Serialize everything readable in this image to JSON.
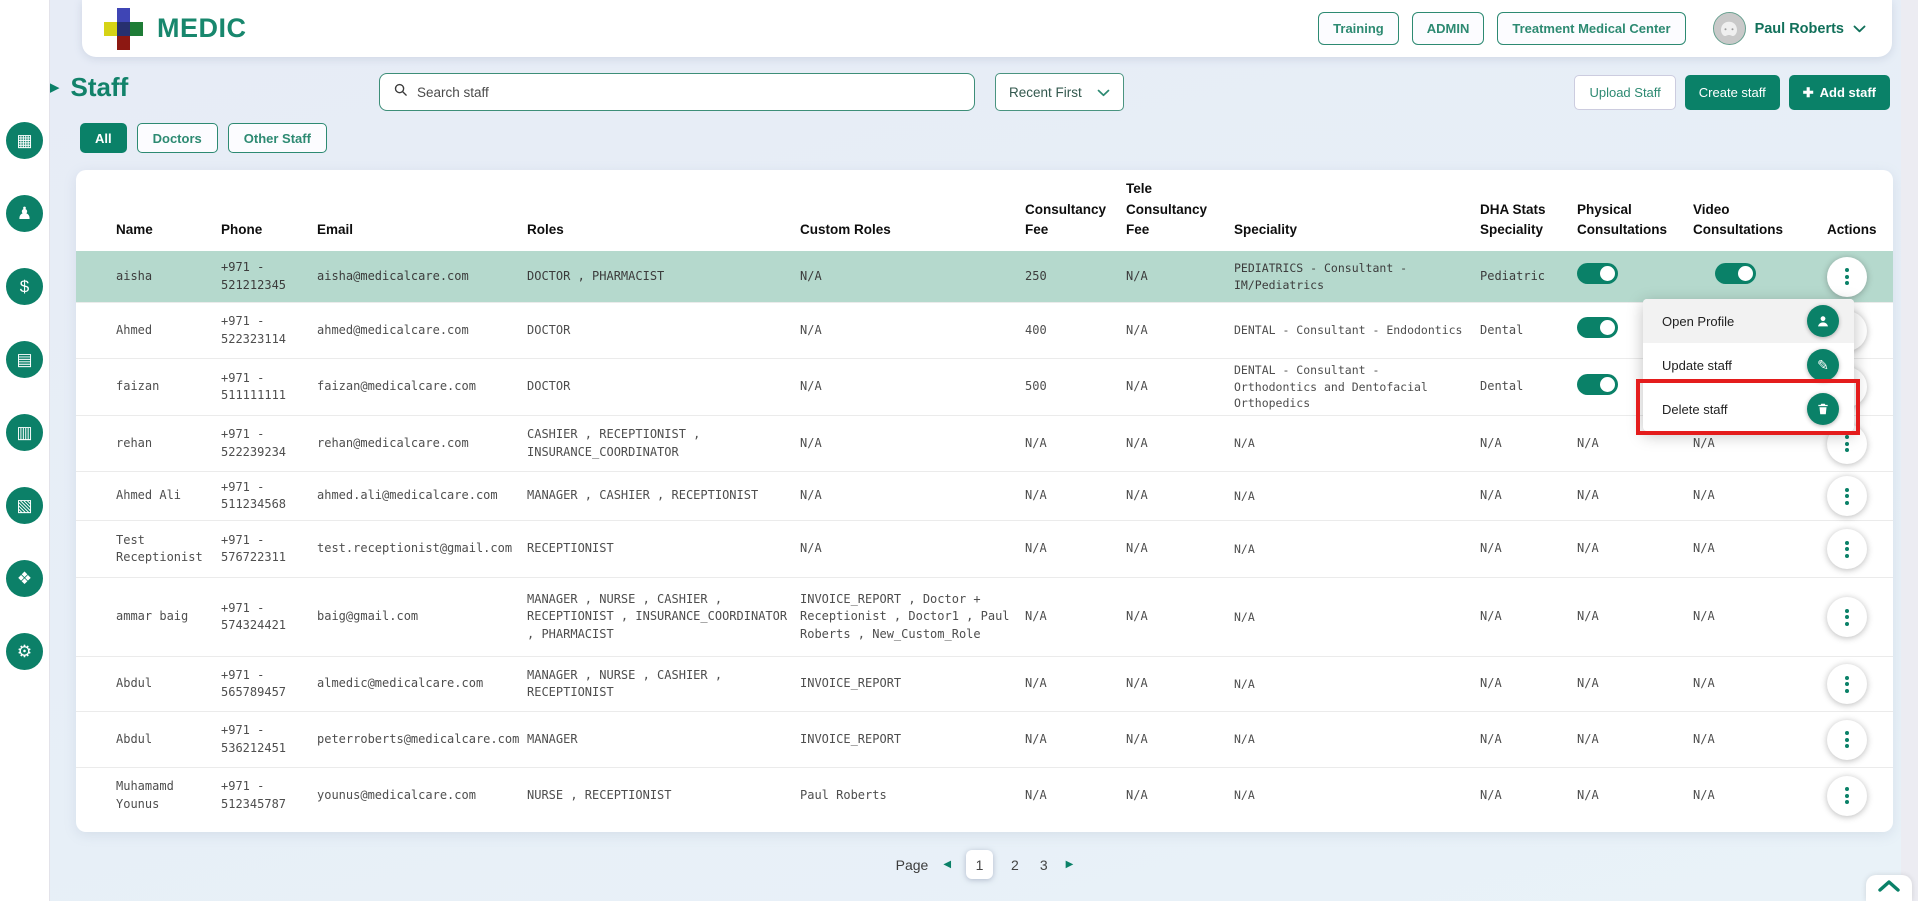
{
  "header": {
    "brand": "MEDIC",
    "nav": [
      "Training",
      "ADMIN",
      "Treatment Medical Center"
    ],
    "user": "Paul Roberts"
  },
  "toolbar": {
    "title": "Staff",
    "search_placeholder": "Search staff",
    "sort": "Recent First",
    "upload": "Upload Staff",
    "create": "Create staff",
    "add": "Add staff"
  },
  "tabs": [
    {
      "label": "All",
      "active": true
    },
    {
      "label": "Doctors",
      "active": false
    },
    {
      "label": "Other Staff",
      "active": false
    }
  ],
  "sidebar": {
    "icons": [
      {
        "name": "calendar-icon",
        "glyph": "▦"
      },
      {
        "name": "patient-icon",
        "glyph": "♟"
      },
      {
        "name": "billing-icon",
        "glyph": "$"
      },
      {
        "name": "insurance-document-icon",
        "glyph": "▤"
      },
      {
        "name": "reports-icon",
        "glyph": "▥"
      },
      {
        "name": "admin-board-icon",
        "glyph": "▧"
      },
      {
        "name": "offers-tag-icon",
        "glyph": "❖"
      },
      {
        "name": "settings-gear-icon",
        "glyph": "⚙"
      }
    ]
  },
  "table": {
    "columns": [
      "Name",
      "Phone",
      "Email",
      "Roles",
      "Custom Roles",
      "Consultancy Fee",
      "Tele Consultancy Fee",
      "Speciality",
      "DHA Stats Speciality",
      "Physical Consultations",
      "Video Consultations",
      "Actions"
    ],
    "rows": [
      {
        "name": "aisha",
        "phone": "+971 - 521212345",
        "email": "aisha@medicalcare.com",
        "roles": "DOCTOR , PHARMACIST",
        "custom_roles": "N/A",
        "consultancy_fee": "250",
        "tele_consultancy_fee": "N/A",
        "speciality": "PEDIATRICS - Consultant - IM/Pediatrics",
        "dha_speciality": "Pediatric",
        "physical": "on",
        "video": "on",
        "highlighted": true
      },
      {
        "name": "Ahmed",
        "phone": "+971 - 522323114",
        "email": "ahmed@medicalcare.com",
        "roles": "DOCTOR",
        "custom_roles": "N/A",
        "consultancy_fee": "400",
        "tele_consultancy_fee": "N/A",
        "speciality": "DENTAL - Consultant - Endodontics",
        "dha_speciality": "Dental",
        "physical": "on",
        "video": "on",
        "highlighted": false
      },
      {
        "name": "faizan",
        "phone": "+971 - 511111111",
        "email": "faizan@medicalcare.com",
        "roles": "DOCTOR",
        "custom_roles": "N/A",
        "consultancy_fee": "500",
        "tele_consultancy_fee": "N/A",
        "speciality": "DENTAL - Consultant - Orthodontics and Dentofacial Orthopedics",
        "dha_speciality": "Dental",
        "physical": "on",
        "video": "on",
        "highlighted": false
      },
      {
        "name": "rehan",
        "phone": "+971 - 522239234",
        "email": "rehan@medicalcare.com",
        "roles": "CASHIER , RECEPTIONIST , INSURANCE_COORDINATOR",
        "custom_roles": "N/A",
        "consultancy_fee": "N/A",
        "tele_consultancy_fee": "N/A",
        "speciality": "N/A",
        "dha_speciality": "N/A",
        "physical": "N/A",
        "video": "N/A",
        "highlighted": false
      },
      {
        "name": "Ahmed Ali",
        "phone": "+971 - 511234568",
        "email": "ahmed.ali@medicalcare.com",
        "roles": "MANAGER , CASHIER , RECEPTIONIST",
        "custom_roles": "N/A",
        "consultancy_fee": "N/A",
        "tele_consultancy_fee": "N/A",
        "speciality": "N/A",
        "dha_speciality": "N/A",
        "physical": "N/A",
        "video": "N/A",
        "highlighted": false
      },
      {
        "name": "Test Receptionist",
        "phone": "+971 - 576722311",
        "email": "test.receptionist@gmail.com",
        "roles": "RECEPTIONIST",
        "custom_roles": "N/A",
        "consultancy_fee": "N/A",
        "tele_consultancy_fee": "N/A",
        "speciality": "N/A",
        "dha_speciality": "N/A",
        "physical": "N/A",
        "video": "N/A",
        "highlighted": false
      },
      {
        "name": "ammar baig",
        "phone": "+971 - 574324421",
        "email": "baig@gmail.com",
        "roles": "MANAGER , NURSE , CASHIER , RECEPTIONIST , INSURANCE_COORDINATOR , PHARMACIST",
        "custom_roles": "INVOICE_REPORT , Doctor + Receptionist , Doctor1 , Paul Roberts , New_Custom_Role",
        "consultancy_fee": "N/A",
        "tele_consultancy_fee": "N/A",
        "speciality": "N/A",
        "dha_speciality": "N/A",
        "physical": "N/A",
        "video": "N/A",
        "highlighted": false
      },
      {
        "name": "Abdul",
        "phone": "+971 - 565789457",
        "email": "almedic@medicalcare.com",
        "roles": "MANAGER , NURSE , CASHIER , RECEPTIONIST",
        "custom_roles": "INVOICE_REPORT",
        "consultancy_fee": "N/A",
        "tele_consultancy_fee": "N/A",
        "speciality": "N/A",
        "dha_speciality": "N/A",
        "physical": "N/A",
        "video": "N/A",
        "highlighted": false
      },
      {
        "name": "Abdul",
        "phone": "+971 - 536212451",
        "email": "peterroberts@medicalcare.com",
        "roles": "MANAGER",
        "custom_roles": "INVOICE_REPORT",
        "consultancy_fee": "N/A",
        "tele_consultancy_fee": "N/A",
        "speciality": "N/A",
        "dha_speciality": "N/A",
        "physical": "N/A",
        "video": "N/A",
        "highlighted": false
      },
      {
        "name": "Muhamamd Younus",
        "phone": "+971 - 512345787",
        "email": "younus@medicalcare.com",
        "roles": "NURSE , RECEPTIONIST",
        "custom_roles": "Paul Roberts",
        "consultancy_fee": "N/A",
        "tele_consultancy_fee": "N/A",
        "speciality": "N/A",
        "dha_speciality": "N/A",
        "physical": "N/A",
        "video": "N/A",
        "highlighted": false
      }
    ]
  },
  "menu": {
    "items": [
      {
        "label": "Open Profile",
        "icon": "person"
      },
      {
        "label": "Update staff",
        "icon": "pencil"
      },
      {
        "label": "Delete staff",
        "icon": "trash",
        "annotated": true
      }
    ]
  },
  "pagination": {
    "label": "Page",
    "pages": [
      "1",
      "2",
      "3"
    ],
    "current": "1"
  },
  "icons": {
    "plus": "✚",
    "prev": "◀",
    "next": "▶",
    "title_arrow": "▶",
    "pencil": "✎"
  },
  "colors": {
    "primary": "#0a8168",
    "row_highlight": "#b5d9cd",
    "annotation": "#e41c1c"
  }
}
